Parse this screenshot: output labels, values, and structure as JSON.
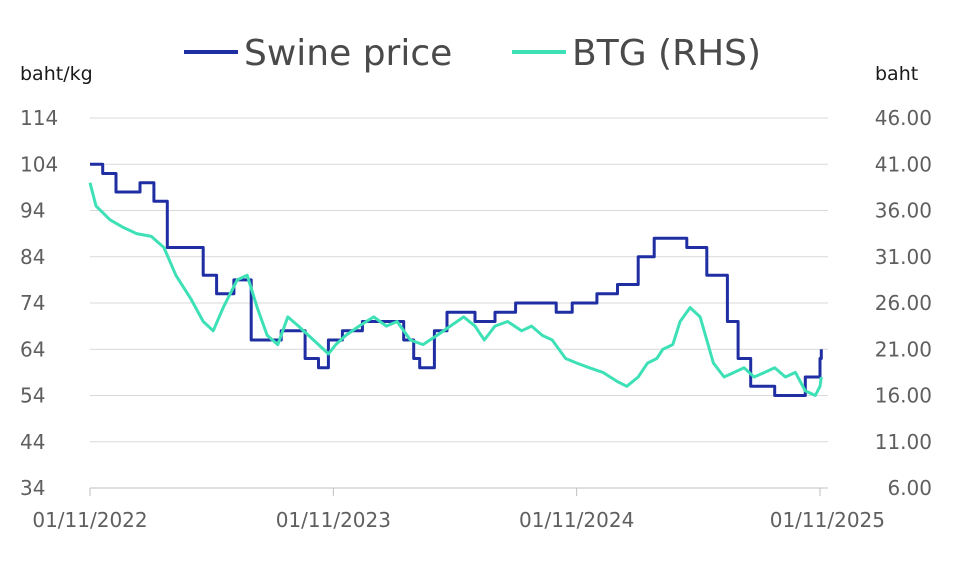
{
  "chart_data": {
    "type": "line",
    "title": "",
    "left_axis_label": "baht/kg",
    "right_axis_label": "baht",
    "x_tick_labels": [
      "01/11/2022",
      "01/11/2023",
      "01/11/2024",
      "01/11/2025"
    ],
    "x_range": [
      "2022-11-01",
      "2025-11-01"
    ],
    "left_ylim": [
      34,
      114
    ],
    "left_ticks": [
      "114",
      "104",
      "94",
      "84",
      "74",
      "64",
      "54",
      "44",
      "34"
    ],
    "right_ylim": [
      6,
      46
    ],
    "right_ticks": [
      "46.00",
      "41.00",
      "36.00",
      "31.00",
      "26.00",
      "21.00",
      "16.00",
      "11.00",
      "6.00"
    ],
    "grid": "horizontal",
    "legend_position": "top-center",
    "series": [
      {
        "name": "Swine price",
        "axis": "left",
        "color": "#1f2fa3",
        "step": true,
        "points": [
          [
            "2022-11-01",
            104
          ],
          [
            "2022-11-20",
            102
          ],
          [
            "2022-12-10",
            98
          ],
          [
            "2023-01-15",
            100
          ],
          [
            "2023-02-05",
            96
          ],
          [
            "2023-02-25",
            86
          ],
          [
            "2023-03-20",
            86
          ],
          [
            "2023-04-20",
            80
          ],
          [
            "2023-05-10",
            76
          ],
          [
            "2023-06-05",
            79
          ],
          [
            "2023-07-01",
            66
          ],
          [
            "2023-08-15",
            68
          ],
          [
            "2023-09-20",
            62
          ],
          [
            "2023-10-10",
            60
          ],
          [
            "2023-10-25",
            66
          ],
          [
            "2023-11-15",
            68
          ],
          [
            "2023-12-15",
            70
          ],
          [
            "2024-02-15",
            66
          ],
          [
            "2024-03-01",
            62
          ],
          [
            "2024-03-10",
            60
          ],
          [
            "2024-04-01",
            68
          ],
          [
            "2024-04-20",
            72
          ],
          [
            "2024-06-01",
            70
          ],
          [
            "2024-07-01",
            72
          ],
          [
            "2024-08-01",
            74
          ],
          [
            "2024-10-01",
            72
          ],
          [
            "2024-10-25",
            74
          ],
          [
            "2024-12-01",
            76
          ],
          [
            "2025-01-01",
            78
          ],
          [
            "2025-02-01",
            84
          ],
          [
            "2025-02-25",
            88
          ],
          [
            "2025-04-15",
            86
          ],
          [
            "2025-05-15",
            80
          ],
          [
            "2025-06-15",
            70
          ],
          [
            "2025-07-01",
            62
          ],
          [
            "2025-07-20",
            56
          ],
          [
            "2025-08-25",
            54
          ],
          [
            "2025-09-20",
            54
          ],
          [
            "2025-10-10",
            58
          ],
          [
            "2025-11-01",
            62
          ],
          [
            "2025-11-03",
            64
          ]
        ]
      },
      {
        "name": "BTG (RHS)",
        "axis": "right",
        "color": "#3ee0b6",
        "step": false,
        "points": [
          [
            "2022-11-01",
            39.0
          ],
          [
            "2022-11-10",
            36.5
          ],
          [
            "2022-12-01",
            35.0
          ],
          [
            "2022-12-20",
            34.2
          ],
          [
            "2023-01-10",
            33.5
          ],
          [
            "2023-02-01",
            33.2
          ],
          [
            "2023-02-20",
            32.0
          ],
          [
            "2023-03-10",
            29.0
          ],
          [
            "2023-04-01",
            26.5
          ],
          [
            "2023-04-20",
            24.0
          ],
          [
            "2023-05-05",
            23.0
          ],
          [
            "2023-05-20",
            25.5
          ],
          [
            "2023-06-10",
            28.5
          ],
          [
            "2023-06-25",
            29.0
          ],
          [
            "2023-07-10",
            25.5
          ],
          [
            "2023-07-25",
            22.5
          ],
          [
            "2023-08-10",
            21.5
          ],
          [
            "2023-08-25",
            24.5
          ],
          [
            "2023-09-10",
            23.5
          ],
          [
            "2023-09-25",
            22.5
          ],
          [
            "2023-10-10",
            21.5
          ],
          [
            "2023-10-25",
            20.5
          ],
          [
            "2023-11-05",
            21.5
          ],
          [
            "2023-11-20",
            22.5
          ],
          [
            "2023-12-10",
            23.5
          ],
          [
            "2024-01-01",
            24.5
          ],
          [
            "2024-01-20",
            23.5
          ],
          [
            "2024-02-05",
            24.0
          ],
          [
            "2024-02-25",
            22.0
          ],
          [
            "2024-03-15",
            21.5
          ],
          [
            "2024-04-05",
            22.5
          ],
          [
            "2024-04-25",
            23.5
          ],
          [
            "2024-05-15",
            24.5
          ],
          [
            "2024-06-01",
            23.5
          ],
          [
            "2024-06-15",
            22.0
          ],
          [
            "2024-07-01",
            23.5
          ],
          [
            "2024-07-20",
            24.0
          ],
          [
            "2024-08-10",
            23.0
          ],
          [
            "2024-08-25",
            23.5
          ],
          [
            "2024-09-10",
            22.5
          ],
          [
            "2024-09-25",
            22.0
          ],
          [
            "2024-10-15",
            20.0
          ],
          [
            "2024-11-01",
            19.5
          ],
          [
            "2024-11-20",
            19.0
          ],
          [
            "2024-12-10",
            18.5
          ],
          [
            "2025-01-01",
            17.5
          ],
          [
            "2025-01-15",
            17.0
          ],
          [
            "2025-02-01",
            18.0
          ],
          [
            "2025-02-15",
            19.5
          ],
          [
            "2025-03-01",
            20.0
          ],
          [
            "2025-03-10",
            21.0
          ],
          [
            "2025-03-25",
            21.5
          ],
          [
            "2025-04-05",
            24.0
          ],
          [
            "2025-04-20",
            25.5
          ],
          [
            "2025-05-05",
            24.5
          ],
          [
            "2025-05-15",
            22.0
          ],
          [
            "2025-05-25",
            19.5
          ],
          [
            "2025-06-10",
            18.0
          ],
          [
            "2025-06-25",
            18.5
          ],
          [
            "2025-07-10",
            19.0
          ],
          [
            "2025-07-25",
            18.0
          ],
          [
            "2025-08-10",
            18.5
          ],
          [
            "2025-08-25",
            19.0
          ],
          [
            "2025-09-10",
            18.0
          ],
          [
            "2025-09-25",
            18.5
          ],
          [
            "2025-10-10",
            16.5
          ],
          [
            "2025-10-25",
            16.0
          ],
          [
            "2025-11-01",
            17.0
          ],
          [
            "2025-11-03",
            18.0
          ]
        ]
      }
    ]
  }
}
